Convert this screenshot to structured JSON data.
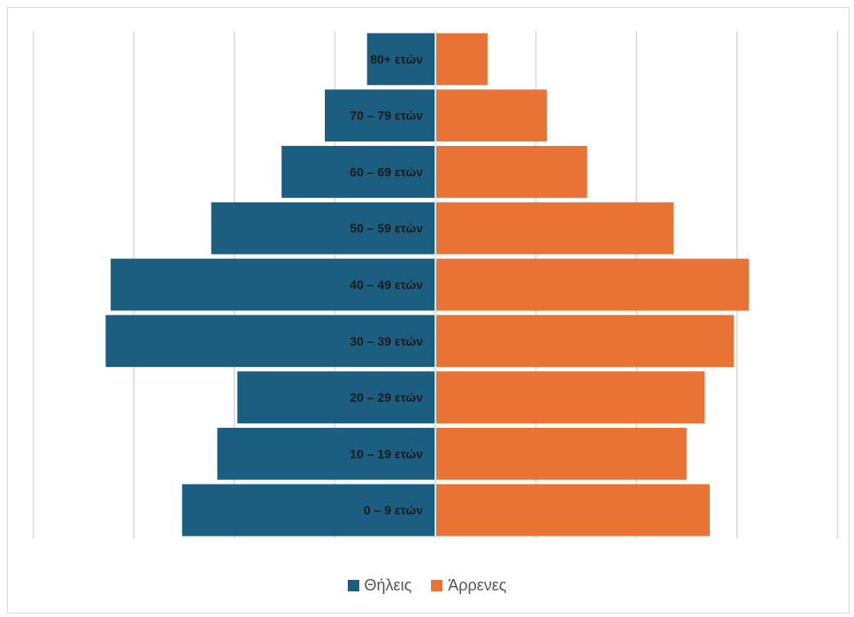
{
  "chart_data": {
    "type": "bar",
    "orientation": "horizontal",
    "subtype": "population-pyramid",
    "categories": [
      "0 – 9 ετών",
      "10 – 19 ετών",
      "20 – 29 ετών",
      "30 – 39 ετών",
      "40 – 49 ετών",
      "50 – 59 ετών",
      "60 – 69 ετών",
      "70 – 79 ετών",
      "80+ ετών"
    ],
    "series": [
      {
        "name": "Θήλεις",
        "color": "#1b5e80",
        "values": [
          252,
          217,
          197,
          328,
          323,
          223,
          153,
          110,
          68
        ]
      },
      {
        "name": "Άρρενες",
        "color": "#e87334",
        "values": [
          272,
          249,
          267,
          296,
          311,
          236,
          150,
          110,
          51
        ]
      }
    ],
    "xlim": [
      -400,
      400
    ],
    "grid": true,
    "legend_position": "bottom"
  }
}
